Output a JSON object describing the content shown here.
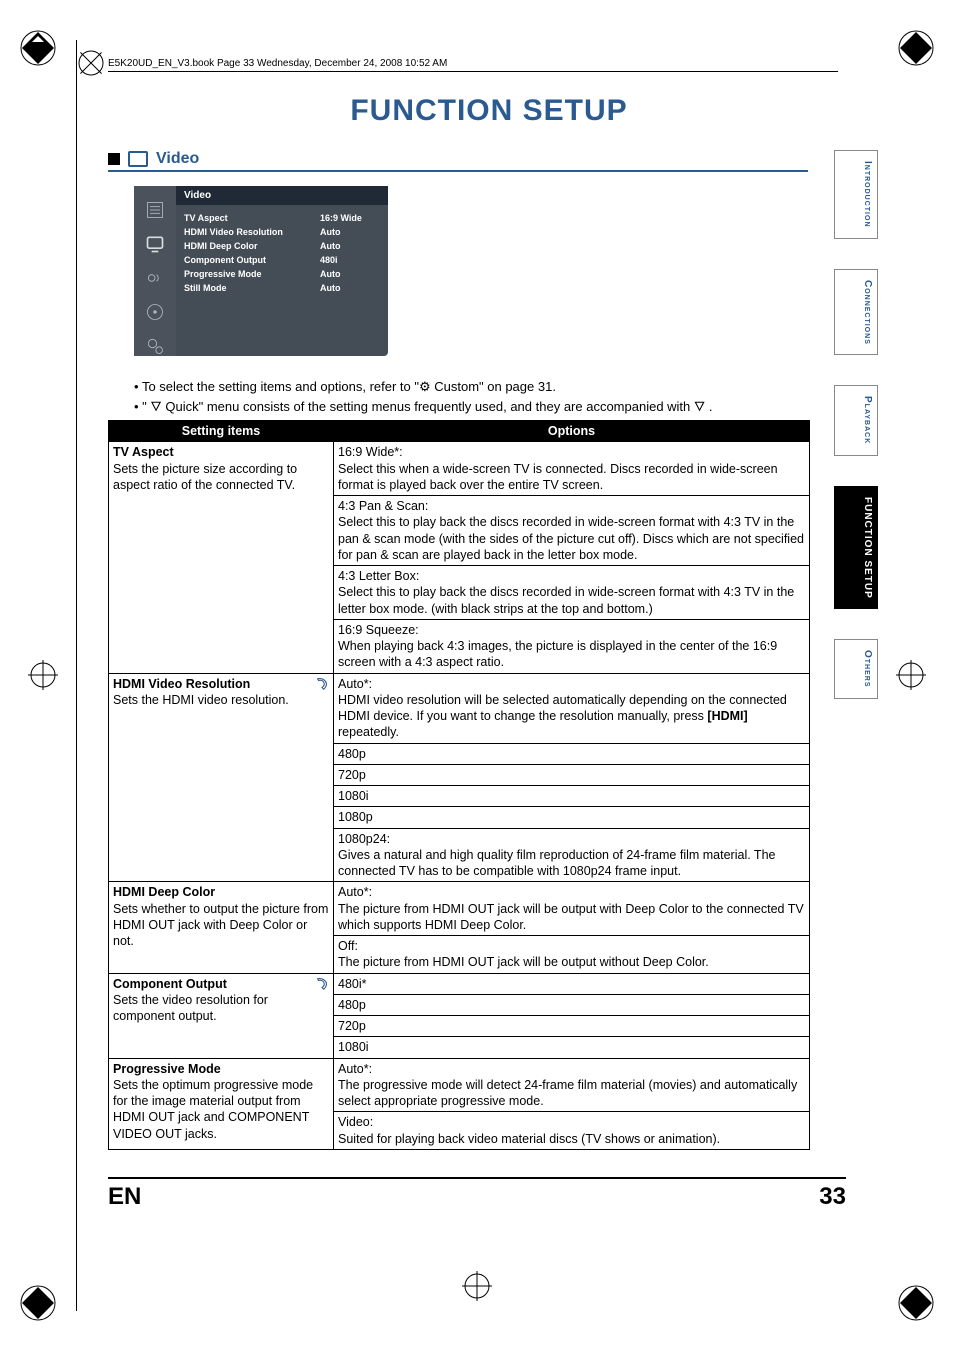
{
  "book_header": "E5K20UD_EN_V3.book  Page 33  Wednesday, December 24, 2008  10:52 AM",
  "page_title": "FUNCTION SETUP",
  "section_title": "Video",
  "ui": {
    "title": "Video",
    "rows": [
      {
        "k": "TV Aspect",
        "v": "16:9 Wide"
      },
      {
        "k": "HDMI Video Resolution",
        "v": "Auto"
      },
      {
        "k": "HDMI Deep Color",
        "v": "Auto"
      },
      {
        "k": "Component Output",
        "v": "480i"
      },
      {
        "k": "Progressive Mode",
        "v": "Auto"
      },
      {
        "k": "Still Mode",
        "v": "Auto"
      }
    ]
  },
  "bullets": [
    "To select the setting items and options, refer to \"⚙ Custom\" on page 31.",
    "\" 🜄 Quick\"  menu consists of the setting menus frequently used, and they are accompanied with 🜄 ."
  ],
  "table": {
    "headers": [
      "Setting items",
      "Options"
    ],
    "groups": [
      {
        "setting_name": "TV Aspect",
        "setting_desc": "Sets the picture size according to aspect ratio of the connected TV.",
        "has_quick": false,
        "options": [
          "16:9 Wide*:\nSelect this when a wide-screen TV is connected. Discs recorded in wide-screen format is played back over the entire TV screen.",
          "4:3 Pan & Scan:\nSelect this to play back the discs recorded in wide-screen format with 4:3 TV in the pan & scan mode (with the sides of the picture cut off). Discs which are not specified for pan & scan are played back in the letter box mode.",
          "4:3 Letter Box:\nSelect this to play back the discs recorded in wide-screen format with 4:3 TV in the letter box mode. (with black strips at the top and bottom.)",
          "16:9 Squeeze:\nWhen playing back 4:3 images, the picture is displayed in the center of the 16:9 screen with a 4:3 aspect ratio."
        ]
      },
      {
        "setting_name": "HDMI Video Resolution",
        "setting_desc": "Sets the HDMI video resolution.",
        "has_quick": true,
        "options": [
          "Auto*:\nHDMI video resolution will be selected automatically depending on the connected HDMI device. If  you want to change the resolution manually, press [HDMI] repeatedly.",
          "480p",
          "720p",
          "1080i",
          "1080p",
          "1080p24:\nGives a natural and high quality film reproduction of 24-frame film material. The connected TV has to be compatible with 1080p24 frame input."
        ]
      },
      {
        "setting_name": "HDMI Deep Color",
        "setting_desc": "Sets whether to output the picture from HDMI OUT jack with Deep Color or not.",
        "has_quick": false,
        "options": [
          "Auto*:\nThe picture from HDMI OUT jack will be output with Deep Color to the connected TV which supports HDMI Deep Color.",
          "Off:\nThe picture from HDMI OUT jack will be output without Deep Color."
        ]
      },
      {
        "setting_name": "Component Output",
        "setting_desc": "Sets the video resolution for component output.",
        "has_quick": true,
        "options": [
          "480i*",
          "480p",
          "720p",
          "1080i"
        ]
      },
      {
        "setting_name": "Progressive Mode",
        "setting_desc": "Sets the optimum progressive mode for the image material output from HDMI OUT jack and COMPONENT VIDEO OUT jacks.",
        "has_quick": false,
        "options": [
          "Auto*:\nThe progressive mode will detect 24-frame film material (movies) and automatically select appropriate progressive mode.",
          "Video:\nSuited for playing back video material discs (TV shows or animation)."
        ]
      }
    ]
  },
  "sidetabs": [
    {
      "label": "Introduction",
      "active": false
    },
    {
      "label": "Connections",
      "active": false
    },
    {
      "label": "Playback",
      "active": false
    },
    {
      "label": "FUNCTION SETUP",
      "active": true
    },
    {
      "label": "Others",
      "active": false
    }
  ],
  "footer": {
    "lang": "EN",
    "page": "33"
  },
  "colors": {
    "accent": "#2a5a90",
    "ui_bg": "#444c55",
    "ui_header": "#1f2a36"
  }
}
